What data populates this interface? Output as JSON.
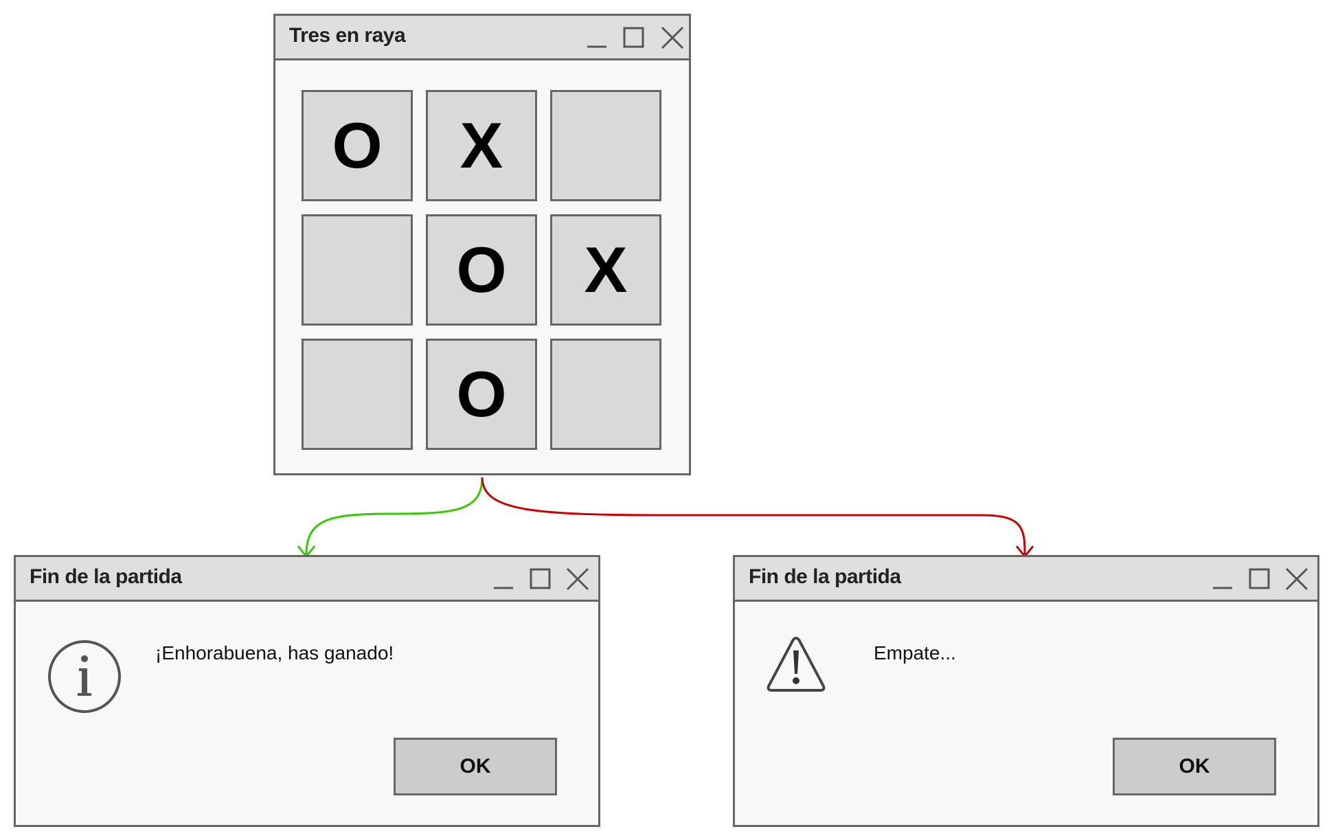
{
  "game_window": {
    "title": "Tres en raya",
    "board": [
      "O",
      "X",
      "",
      "",
      "O",
      "X",
      "",
      "O",
      ""
    ]
  },
  "win_dialog": {
    "title": "Fin de la partida",
    "icon": "info-icon",
    "message": "¡Enhorabuena, has ganado!",
    "ok_label": "OK"
  },
  "draw_dialog": {
    "title": "Fin de la partida",
    "icon": "warning-icon",
    "message": "Empate...",
    "ok_label": "OK"
  },
  "colors": {
    "win_arrow": "#33cc00",
    "draw_arrow": "#cc0000",
    "border": "#666666",
    "titlebar": "#dfdfdf",
    "cell": "#d9d9d9",
    "button": "#cccccc"
  }
}
